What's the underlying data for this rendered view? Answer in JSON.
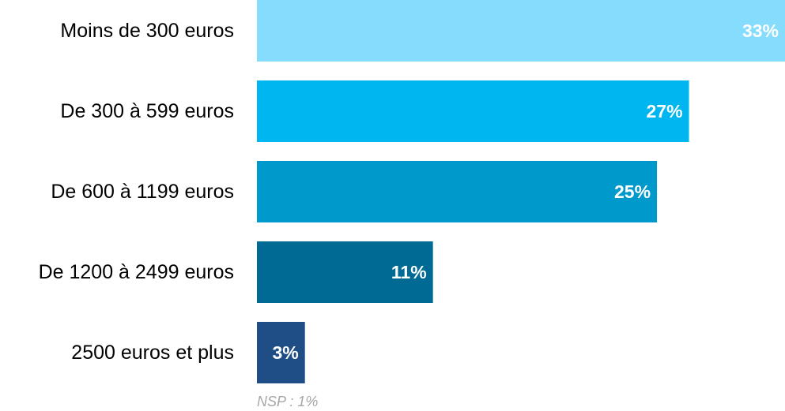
{
  "chart_data": {
    "type": "bar",
    "orientation": "horizontal",
    "categories": [
      "Moins de 300 euros",
      "De 300 à 599 euros",
      "De 600 à 1199 euros",
      "De 1200 à 2499 euros",
      "2500 euros et plus"
    ],
    "values": [
      33,
      27,
      25,
      11,
      3
    ],
    "value_labels": [
      "33%",
      "27%",
      "25%",
      "11%",
      "3%"
    ],
    "colors": [
      "#85dcfc",
      "#00b6f0",
      "#0099cc",
      "#006a94",
      "#1f4e86"
    ],
    "xlim": [
      0,
      33
    ],
    "grid": false,
    "legend": "none"
  },
  "note": "NSP : 1%"
}
